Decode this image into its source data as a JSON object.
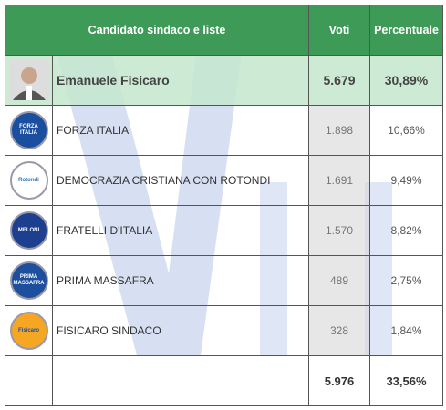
{
  "header": {
    "columns": [
      "Candidato sindaco e liste",
      "Voti",
      "Percentuale"
    ]
  },
  "candidate": {
    "name": "Emanuele Fisicaro",
    "votes": "5.679",
    "percent": "30,89%"
  },
  "lists": [
    {
      "logo": "FORZA ITALIA",
      "name": "FORZA ITALIA",
      "votes": "1.898",
      "percent": "10,66%"
    },
    {
      "logo": "Rotondi",
      "name": "DEMOCRAZIA CRISTIANA CON ROTONDI",
      "votes": "1.691",
      "percent": "9,49%"
    },
    {
      "logo": "MELONI",
      "name": "FRATELLI D'ITALIA",
      "votes": "1.570",
      "percent": "8,82%"
    },
    {
      "logo": "PRIMA MASSAFRA",
      "name": "PRIMA MASSAFRA",
      "votes": "489",
      "percent": "2,75%"
    },
    {
      "logo": "Fisicaro",
      "name": "FISICARO SINDACO",
      "votes": "328",
      "percent": "1,84%"
    }
  ],
  "total": {
    "votes": "5.976",
    "percent": "33,56%"
  }
}
